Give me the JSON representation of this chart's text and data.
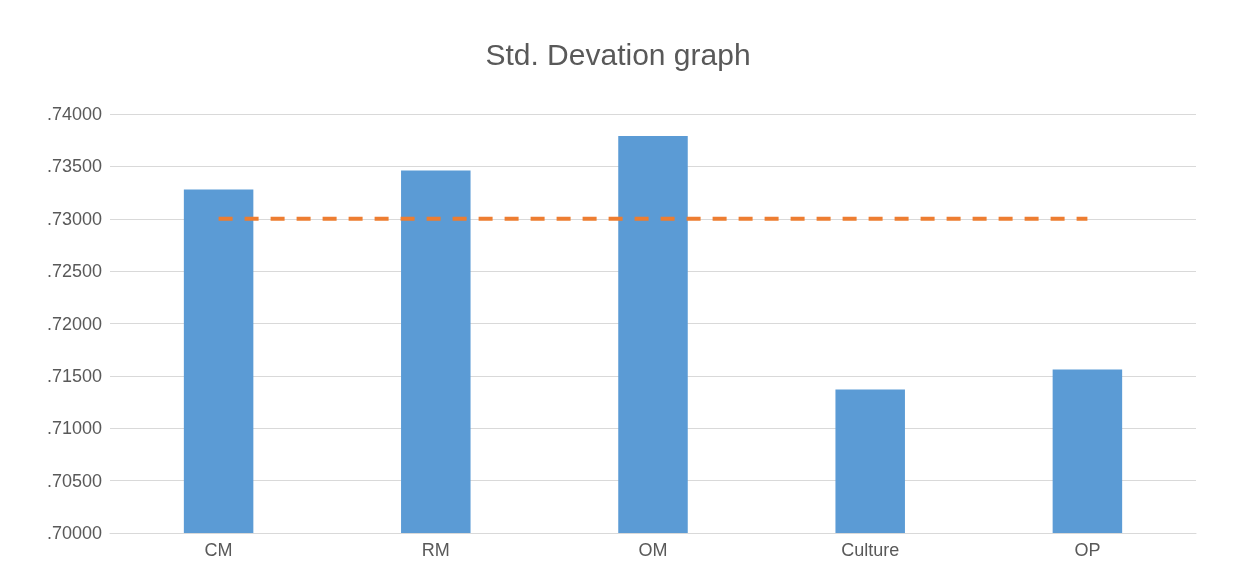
{
  "chart_data": {
    "type": "bar",
    "title": "Std. Devation graph",
    "categories": [
      "CM",
      "RM",
      "OM",
      "Culture",
      "OP"
    ],
    "series": [
      {
        "color": "#5b9bd5",
        "values": [
          0.7328,
          0.7346,
          0.7379,
          0.7137,
          0.7156
        ]
      },
      {
        "type": "line",
        "color": "#ed7d31",
        "line_style": "dashed",
        "marker": "none",
        "values": [
          0.73,
          0.73,
          0.73,
          0.73,
          0.73
        ]
      }
    ],
    "ylim": [
      0.7,
      0.74
    ],
    "yticks": [
      {
        "value": 0.7,
        "label": ".70000"
      },
      {
        "value": 0.705,
        "label": ".70500"
      },
      {
        "value": 0.71,
        "label": ".71000"
      },
      {
        "value": 0.715,
        "label": ".71500"
      },
      {
        "value": 0.72,
        "label": ".72000"
      },
      {
        "value": 0.725,
        "label": ".72500"
      },
      {
        "value": 0.73,
        "label": ".73000"
      },
      {
        "value": 0.735,
        "label": ".73500"
      },
      {
        "value": 0.74,
        "label": ".74000"
      }
    ],
    "grid": "y"
  }
}
